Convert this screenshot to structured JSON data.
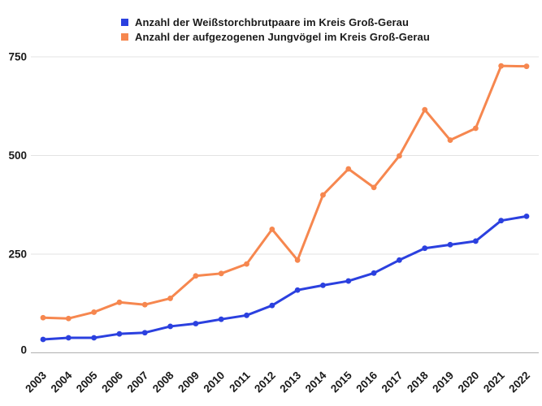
{
  "legend": {
    "items": [
      {
        "label": "Anzahl der Weißstorchbrutpaare im Kreis Groß-Gerau",
        "color": "#2b40df"
      },
      {
        "label": "Anzahl der aufgezogenen Jungvögel im Kreis Groß-Gerau",
        "color": "#f6874f"
      }
    ]
  },
  "chart_data": {
    "type": "line",
    "categories": [
      "2003",
      "2004",
      "2005",
      "2006",
      "2007",
      "2008",
      "2009",
      "2010",
      "2011",
      "2012",
      "2013",
      "2014",
      "2015",
      "2016",
      "2017",
      "2018",
      "2019",
      "2020",
      "2021",
      "2022"
    ],
    "series": [
      {
        "name": "Anzahl der Weißstorchbrutpaare im Kreis Groß-Gerau",
        "color": "#2b40df",
        "values": [
          34,
          38,
          38,
          48,
          51,
          67,
          74,
          85,
          95,
          120,
          159,
          171,
          182,
          202,
          235,
          265,
          274,
          283,
          335,
          346
        ]
      },
      {
        "name": "Anzahl der aufgezogenen Jungvögel im Kreis Groß-Gerau",
        "color": "#f6874f",
        "values": [
          89,
          87,
          103,
          128,
          122,
          138,
          195,
          201,
          225,
          313,
          235,
          400,
          466,
          419,
          499,
          616,
          539,
          569,
          727,
          726
        ]
      }
    ],
    "title": "",
    "xlabel": "",
    "ylabel": "",
    "y_ticks": [
      0,
      250,
      500,
      750
    ],
    "ylim": [
      0,
      750
    ],
    "grid": true,
    "legend_position": "top",
    "x_tick_rotation": -45
  },
  "colors": {
    "background": "#ffffff",
    "gridline": "#e3e3e3",
    "axis_line": "#b0b0b0",
    "tick_text": "#1a1a1a"
  }
}
